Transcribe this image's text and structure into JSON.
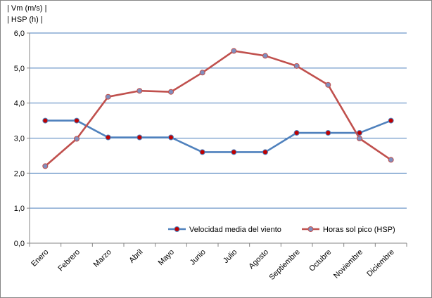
{
  "chart_data": {
    "type": "line",
    "ylabel_lines": [
      "| Vm (m/s) |",
      "| HSP (h) |"
    ],
    "categories": [
      "Enero",
      "Febrero",
      "Marzo",
      "Abril",
      "Mayo",
      "Junio",
      "Julio",
      "Agosto",
      "Septiembre",
      "Octubre",
      "Noviembre",
      "Diciembre"
    ],
    "ylim": [
      0,
      6
    ],
    "ytick_step": 1,
    "ytick_labels": [
      "0,0",
      "1,0",
      "2,0",
      "3,0",
      "4,0",
      "5,0",
      "6,0"
    ],
    "grid": true,
    "legend_position": "bottom-right",
    "series": [
      {
        "name": "Velocidad media del viento",
        "values": [
          3.5,
          3.5,
          3.02,
          3.02,
          3.02,
          2.6,
          2.6,
          2.6,
          3.15,
          3.15,
          3.15,
          3.5
        ],
        "line_color": "#4F81BD",
        "marker_color": "#C00000"
      },
      {
        "name": "Horas sol pico (HSP)",
        "values": [
          2.2,
          2.98,
          4.18,
          4.35,
          4.32,
          4.87,
          5.49,
          5.35,
          5.06,
          4.52,
          2.99,
          2.38
        ],
        "line_color": "#C0504D",
        "marker_color": "#7F8FBF"
      }
    ]
  }
}
